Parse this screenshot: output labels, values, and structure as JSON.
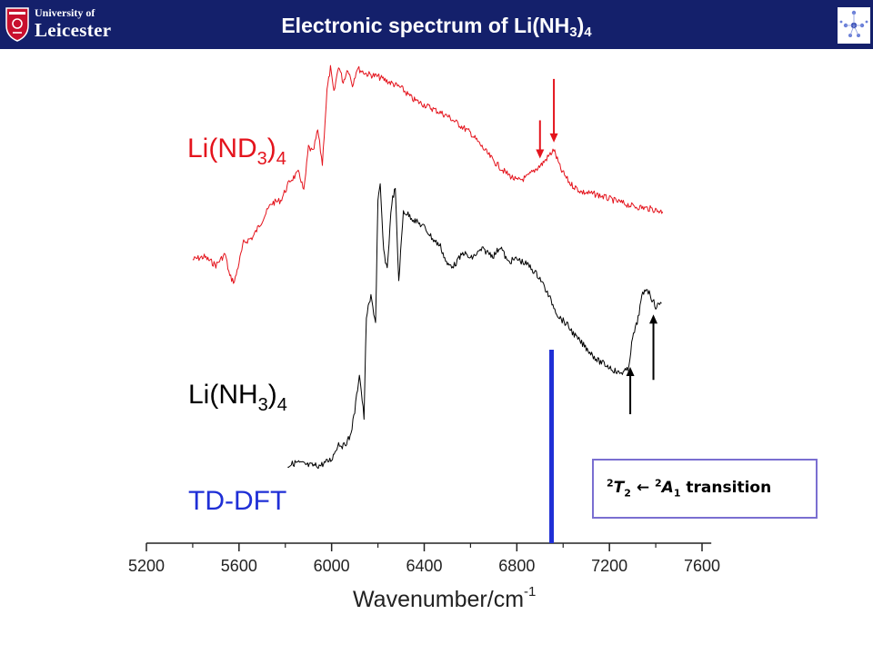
{
  "header": {
    "title_main": "Electronic spectrum of Li(NH",
    "title_sub": "3",
    "title_close": ")",
    "title_sub2": "4",
    "logo_line1": "University of",
    "logo_line2": "Leicester",
    "logo_icon": "university-crest-icon",
    "corner_icon": "molecule-structure-icon"
  },
  "labels": {
    "nd3": {
      "pre": "Li(ND",
      "sub1": "3",
      "close": ")",
      "sub2": "4"
    },
    "nh3": {
      "pre": "Li(NH",
      "sub1": "3",
      "close": ")",
      "sub2": "4"
    },
    "tddft": "TD-DFT"
  },
  "annotation": {
    "sup1": "2",
    "t": "T",
    "sub1": "2",
    "arrow": "←",
    "sup2": "2",
    "a": "A",
    "sub2": "1",
    "suffix": " transition"
  },
  "colors": {
    "nd3": "#e4141d",
    "nh3": "#000000",
    "tddft": "#1f2fd6",
    "header": "#14206b",
    "box_border": "#7a6fd1"
  },
  "chart_data": {
    "type": "line",
    "title": "Electronic spectrum of Li(NH3)4",
    "xlabel": "Wavenumber/cm-1",
    "ylabel": "",
    "x_ticks": [
      5200,
      5600,
      6000,
      6400,
      6800,
      7200,
      7600
    ],
    "xlim": [
      5200,
      7640
    ],
    "y_axis": "none (offset relative intensity, arbitrary units)",
    "series": [
      {
        "name": "Li(ND3)4",
        "color": "#e4141d",
        "x": [
          5400,
          5450,
          5500,
          5540,
          5560,
          5580,
          5620,
          5660,
          5700,
          5740,
          5780,
          5820,
          5860,
          5880,
          5900,
          5920,
          5940,
          5960,
          5980,
          5995,
          6010,
          6030,
          6050,
          6070,
          6090,
          6110,
          6150,
          6200,
          6250,
          6300,
          6350,
          6400,
          6450,
          6500,
          6550,
          6600,
          6650,
          6700,
          6750,
          6800,
          6840,
          6880,
          6910,
          6940,
          6960,
          6990,
          7030,
          7080,
          7150,
          7220,
          7300,
          7380,
          7430
        ],
        "y": [
          0.32,
          0.33,
          0.3,
          0.34,
          0.26,
          0.24,
          0.38,
          0.4,
          0.46,
          0.52,
          0.53,
          0.6,
          0.63,
          0.56,
          0.72,
          0.7,
          0.78,
          0.66,
          0.92,
          1.0,
          0.91,
          1.01,
          0.95,
          1.0,
          0.94,
          1.0,
          0.98,
          0.97,
          0.95,
          0.93,
          0.89,
          0.87,
          0.85,
          0.83,
          0.8,
          0.77,
          0.72,
          0.67,
          0.63,
          0.6,
          0.61,
          0.64,
          0.66,
          0.69,
          0.71,
          0.64,
          0.59,
          0.56,
          0.55,
          0.53,
          0.51,
          0.5,
          0.49
        ]
      },
      {
        "name": "Li(NH3)4",
        "color": "#000000",
        "x": [
          5810,
          5850,
          5900,
          5950,
          6000,
          6030,
          6050,
          6080,
          6100,
          6120,
          6140,
          6150,
          6170,
          6190,
          6200,
          6210,
          6225,
          6240,
          6260,
          6275,
          6290,
          6310,
          6330,
          6360,
          6400,
          6440,
          6470,
          6500,
          6530,
          6570,
          6600,
          6650,
          6700,
          6730,
          6760,
          6800,
          6850,
          6900,
          6940,
          6980,
          7020,
          7060,
          7100,
          7150,
          7200,
          7240,
          7280,
          7300,
          7320,
          7340,
          7360,
          7380,
          7400,
          7425
        ],
        "y": [
          0.05,
          0.06,
          0.05,
          0.05,
          0.07,
          0.12,
          0.11,
          0.14,
          0.22,
          0.34,
          0.2,
          0.52,
          0.58,
          0.5,
          0.88,
          0.93,
          0.72,
          0.67,
          0.88,
          0.92,
          0.63,
          0.85,
          0.84,
          0.82,
          0.8,
          0.76,
          0.74,
          0.68,
          0.68,
          0.72,
          0.7,
          0.73,
          0.71,
          0.74,
          0.69,
          0.7,
          0.68,
          0.64,
          0.58,
          0.52,
          0.49,
          0.45,
          0.42,
          0.38,
          0.36,
          0.34,
          0.35,
          0.45,
          0.5,
          0.58,
          0.61,
          0.58,
          0.55,
          0.56
        ]
      },
      {
        "name": "TD-DFT",
        "color": "#1f2fd6",
        "type": "stick",
        "x": [
          6950
        ],
        "y": [
          1.0
        ]
      }
    ],
    "annotations": [
      {
        "type": "arrow-down",
        "series": "Li(ND3)4",
        "x": 6900,
        "color": "#e4141d"
      },
      {
        "type": "arrow-down",
        "series": "Li(ND3)4",
        "x": 6960,
        "color": "#e4141d"
      },
      {
        "type": "arrow-up",
        "series": "Li(NH3)4",
        "x": 7290,
        "color": "#000000"
      },
      {
        "type": "arrow-up",
        "series": "Li(NH3)4",
        "x": 7390,
        "color": "#000000"
      },
      {
        "type": "text-box",
        "text": "2T2 ← 2A1 transition"
      }
    ],
    "grid": false,
    "legend": "none (series labelled by text at left)"
  }
}
